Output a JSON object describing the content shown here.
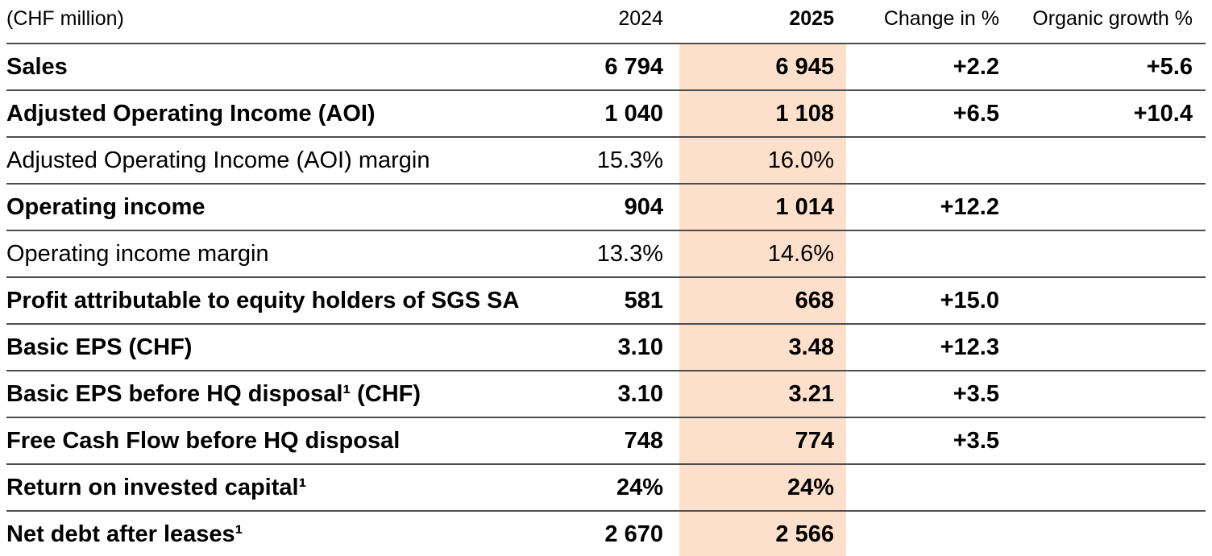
{
  "table": {
    "unit_label": "(CHF million)",
    "columns": {
      "y2024": "2024",
      "y2025": "2025",
      "change": "Change in %",
      "organic": "Organic growth %"
    },
    "highlight_color": "#fce0cb",
    "rule_color": "#4c4c4c",
    "rows": [
      {
        "label": "Sales",
        "bold": true,
        "y2024": "6 794",
        "y2025": "6 945",
        "change": "+2.2",
        "organic": "+5.6"
      },
      {
        "label": "Adjusted Operating Income (AOI)",
        "bold": true,
        "y2024": "1 040",
        "y2025": "1 108",
        "change": "+6.5",
        "organic": "+10.4"
      },
      {
        "label": "Adjusted Operating Income (AOI) margin",
        "bold": false,
        "y2024": "15.3%",
        "y2025": "16.0%",
        "change": "",
        "organic": ""
      },
      {
        "label": "Operating income",
        "bold": true,
        "y2024": "904",
        "y2025": "1 014",
        "change": "+12.2",
        "organic": ""
      },
      {
        "label": "Operating income margin",
        "bold": false,
        "y2024": "13.3%",
        "y2025": "14.6%",
        "change": "",
        "organic": ""
      },
      {
        "label": "Profit attributable to equity holders of SGS SA",
        "bold": true,
        "y2024": "581",
        "y2025": "668",
        "change": "+15.0",
        "organic": ""
      },
      {
        "label": "Basic EPS (CHF)",
        "bold": true,
        "y2024": "3.10",
        "y2025": "3.48",
        "change": "+12.3",
        "organic": ""
      },
      {
        "label": "Basic EPS before HQ disposal¹ (CHF)",
        "bold": true,
        "y2024": "3.10",
        "y2025": "3.21",
        "change": "+3.5",
        "organic": ""
      },
      {
        "label": "Free Cash Flow before HQ disposal",
        "bold": true,
        "y2024": "748",
        "y2025": "774",
        "change": "+3.5",
        "organic": ""
      },
      {
        "label": "Return on invested capital¹",
        "bold": true,
        "y2024": "24%",
        "y2025": "24%",
        "change": "",
        "organic": ""
      },
      {
        "label": "Net debt after leases¹",
        "bold": true,
        "y2024": "2 670",
        "y2025": "2 566",
        "change": "",
        "organic": ""
      }
    ]
  }
}
